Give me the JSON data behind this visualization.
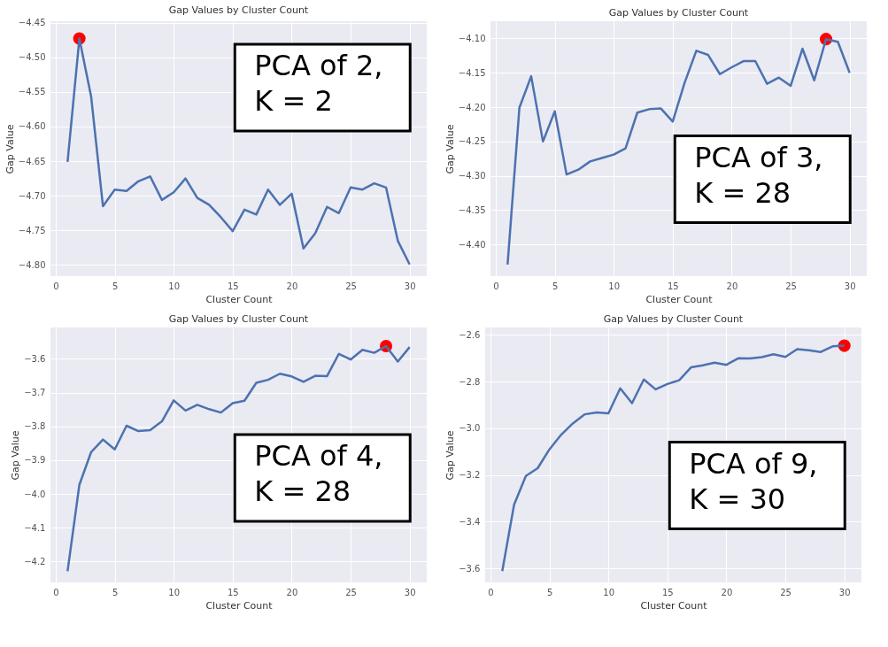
{
  "chart_data": [
    {
      "type": "line",
      "title": "Gap Values by Cluster Count",
      "xlabel": "Cluster Count",
      "ylabel": "Gap Value",
      "x": [
        1,
        2,
        3,
        4,
        5,
        6,
        7,
        8,
        9,
        10,
        11,
        12,
        13,
        14,
        15,
        16,
        17,
        18,
        19,
        20,
        21,
        22,
        23,
        24,
        25,
        26,
        27,
        28,
        29,
        30
      ],
      "series": [
        {
          "color": "#4c72b0",
          "values": [
            -4.651,
            -4.473,
            -4.557,
            -4.715,
            -4.691,
            -4.693,
            -4.679,
            -4.672,
            -4.706,
            -4.695,
            -4.675,
            -4.703,
            -4.713,
            -4.731,
            -4.751,
            -4.72,
            -4.727,
            -4.691,
            -4.713,
            -4.697,
            -4.776,
            -4.754,
            -4.716,
            -4.725,
            -4.688,
            -4.691,
            -4.682,
            -4.688,
            -4.765,
            -4.799
          ]
        },
        {
          "type": "scatter",
          "marker": "circle",
          "color": "#ff0000",
          "x": [
            2
          ],
          "values": [
            -4.473
          ]
        }
      ],
      "xlim": [
        -0.45,
        31.45
      ],
      "xticks": [
        0,
        5,
        10,
        15,
        20,
        25,
        30
      ],
      "ylim": [
        -4.816,
        -4.448
      ],
      "yticks": [
        {
          "value": -4.45,
          "label": "−4.45"
        },
        {
          "value": -4.5,
          "label": "−4.50"
        },
        {
          "value": -4.55,
          "label": "−4.55"
        },
        {
          "value": -4.6,
          "label": "−4.60"
        },
        {
          "value": -4.65,
          "label": "−4.65"
        },
        {
          "value": -4.7,
          "label": "−4.70"
        },
        {
          "value": -4.75,
          "label": "−4.75"
        },
        {
          "value": -4.8,
          "label": "−4.80"
        }
      ],
      "grid": true,
      "annotations": [
        "PCA of 2,\nK = 2"
      ]
    },
    {
      "type": "line",
      "title": "Gap Values by Cluster Count",
      "xlabel": "Cluster Count",
      "ylabel": "Gap Value",
      "x": [
        1,
        2,
        3,
        4,
        5,
        6,
        7,
        8,
        9,
        10,
        11,
        12,
        13,
        14,
        15,
        16,
        17,
        18,
        19,
        20,
        21,
        22,
        23,
        24,
        25,
        26,
        27,
        28,
        29,
        30
      ],
      "series": [
        {
          "color": "#4c72b0",
          "values": [
            -4.429,
            -4.201,
            -4.155,
            -4.25,
            -4.206,
            -4.298,
            -4.291,
            -4.279,
            -4.274,
            -4.269,
            -4.26,
            -4.208,
            -4.203,
            -4.202,
            -4.221,
            -4.165,
            -4.118,
            -4.124,
            -4.152,
            -4.142,
            -4.133,
            -4.133,
            -4.166,
            -4.157,
            -4.169,
            -4.115,
            -4.161,
            -4.101,
            -4.105,
            -4.15
          ]
        },
        {
          "type": "scatter",
          "marker": "circle",
          "color": "#ff0000",
          "x": [
            28
          ],
          "values": [
            -4.101
          ]
        }
      ],
      "xlim": [
        -0.45,
        31.45
      ],
      "xticks": [
        0,
        5,
        10,
        15,
        20,
        25,
        30
      ],
      "ylim": [
        -4.446,
        -4.075
      ],
      "yticks": [
        {
          "value": -4.1,
          "label": "−4.10"
        },
        {
          "value": -4.15,
          "label": "−4.15"
        },
        {
          "value": -4.2,
          "label": "−4.20"
        },
        {
          "value": -4.25,
          "label": "−4.25"
        },
        {
          "value": -4.3,
          "label": "−4.30"
        },
        {
          "value": -4.35,
          "label": "−4.35"
        },
        {
          "value": -4.4,
          "label": "−4.40"
        }
      ],
      "grid": true,
      "annotations": [
        "PCA of 3,\nK = 28"
      ]
    },
    {
      "type": "line",
      "title": "Gap Values by Cluster Count",
      "xlabel": "Cluster Count",
      "ylabel": "Gap Value",
      "x": [
        1,
        2,
        3,
        4,
        5,
        6,
        7,
        8,
        9,
        10,
        11,
        12,
        13,
        14,
        15,
        16,
        17,
        18,
        19,
        20,
        21,
        22,
        23,
        24,
        25,
        26,
        27,
        28,
        29,
        30
      ],
      "series": [
        {
          "color": "#4c72b0",
          "values": [
            -4.229,
            -3.973,
            -3.876,
            -3.839,
            -3.868,
            -3.798,
            -3.814,
            -3.811,
            -3.785,
            -3.723,
            -3.753,
            -3.736,
            -3.749,
            -3.759,
            -3.731,
            -3.724,
            -3.671,
            -3.662,
            -3.644,
            -3.652,
            -3.668,
            -3.65,
            -3.651,
            -3.585,
            -3.602,
            -3.573,
            -3.582,
            -3.562,
            -3.608,
            -3.565
          ]
        },
        {
          "type": "scatter",
          "marker": "circle",
          "color": "#ff0000",
          "x": [
            28
          ],
          "values": [
            -3.562
          ]
        }
      ],
      "xlim": [
        -0.45,
        31.45
      ],
      "xticks": [
        0,
        5,
        10,
        15,
        20,
        25,
        30
      ],
      "ylim": [
        -4.262,
        -3.507
      ],
      "yticks": [
        {
          "value": -3.6,
          "label": "−3.6"
        },
        {
          "value": -3.7,
          "label": "−3.7"
        },
        {
          "value": -3.8,
          "label": "−3.8"
        },
        {
          "value": -3.9,
          "label": "−3.9"
        },
        {
          "value": -4.0,
          "label": "−4.0"
        },
        {
          "value": -4.1,
          "label": "−4.1"
        },
        {
          "value": -4.2,
          "label": "−4.2"
        }
      ],
      "grid": true,
      "annotations": [
        "PCA of 4,\nK = 28"
      ]
    },
    {
      "type": "line",
      "title": "Gap Values by Cluster Count",
      "xlabel": "Cluster Count",
      "ylabel": "Gap Value",
      "x": [
        1,
        2,
        3,
        4,
        5,
        6,
        7,
        8,
        9,
        10,
        11,
        12,
        13,
        14,
        15,
        16,
        17,
        18,
        19,
        20,
        21,
        22,
        23,
        24,
        25,
        26,
        27,
        28,
        29,
        30
      ],
      "series": [
        {
          "color": "#4c72b0",
          "values": [
            -3.612,
            -3.327,
            -3.204,
            -3.171,
            -3.09,
            -3.027,
            -2.978,
            -2.94,
            -2.932,
            -2.936,
            -2.829,
            -2.892,
            -2.791,
            -2.833,
            -2.81,
            -2.794,
            -2.739,
            -2.73,
            -2.719,
            -2.728,
            -2.7,
            -2.701,
            -2.695,
            -2.683,
            -2.694,
            -2.661,
            -2.666,
            -2.673,
            -2.649,
            -2.646
          ]
        },
        {
          "type": "scatter",
          "marker": "circle",
          "color": "#ff0000",
          "x": [
            30
          ],
          "values": [
            -2.646
          ]
        }
      ],
      "xlim": [
        -0.45,
        31.45
      ],
      "xticks": [
        0,
        5,
        10,
        15,
        20,
        25,
        30
      ],
      "ylim": [
        -3.66,
        -2.568
      ],
      "yticks": [
        {
          "value": -2.6,
          "label": "−2.6"
        },
        {
          "value": -2.8,
          "label": "−2.8"
        },
        {
          "value": -3.0,
          "label": "−3.0"
        },
        {
          "value": -3.2,
          "label": "−3.2"
        },
        {
          "value": -3.4,
          "label": "−3.4"
        },
        {
          "value": -3.6,
          "label": "−3.6"
        }
      ],
      "grid": true,
      "annotations": [
        "PCA of 9,\nK = 30"
      ]
    }
  ]
}
